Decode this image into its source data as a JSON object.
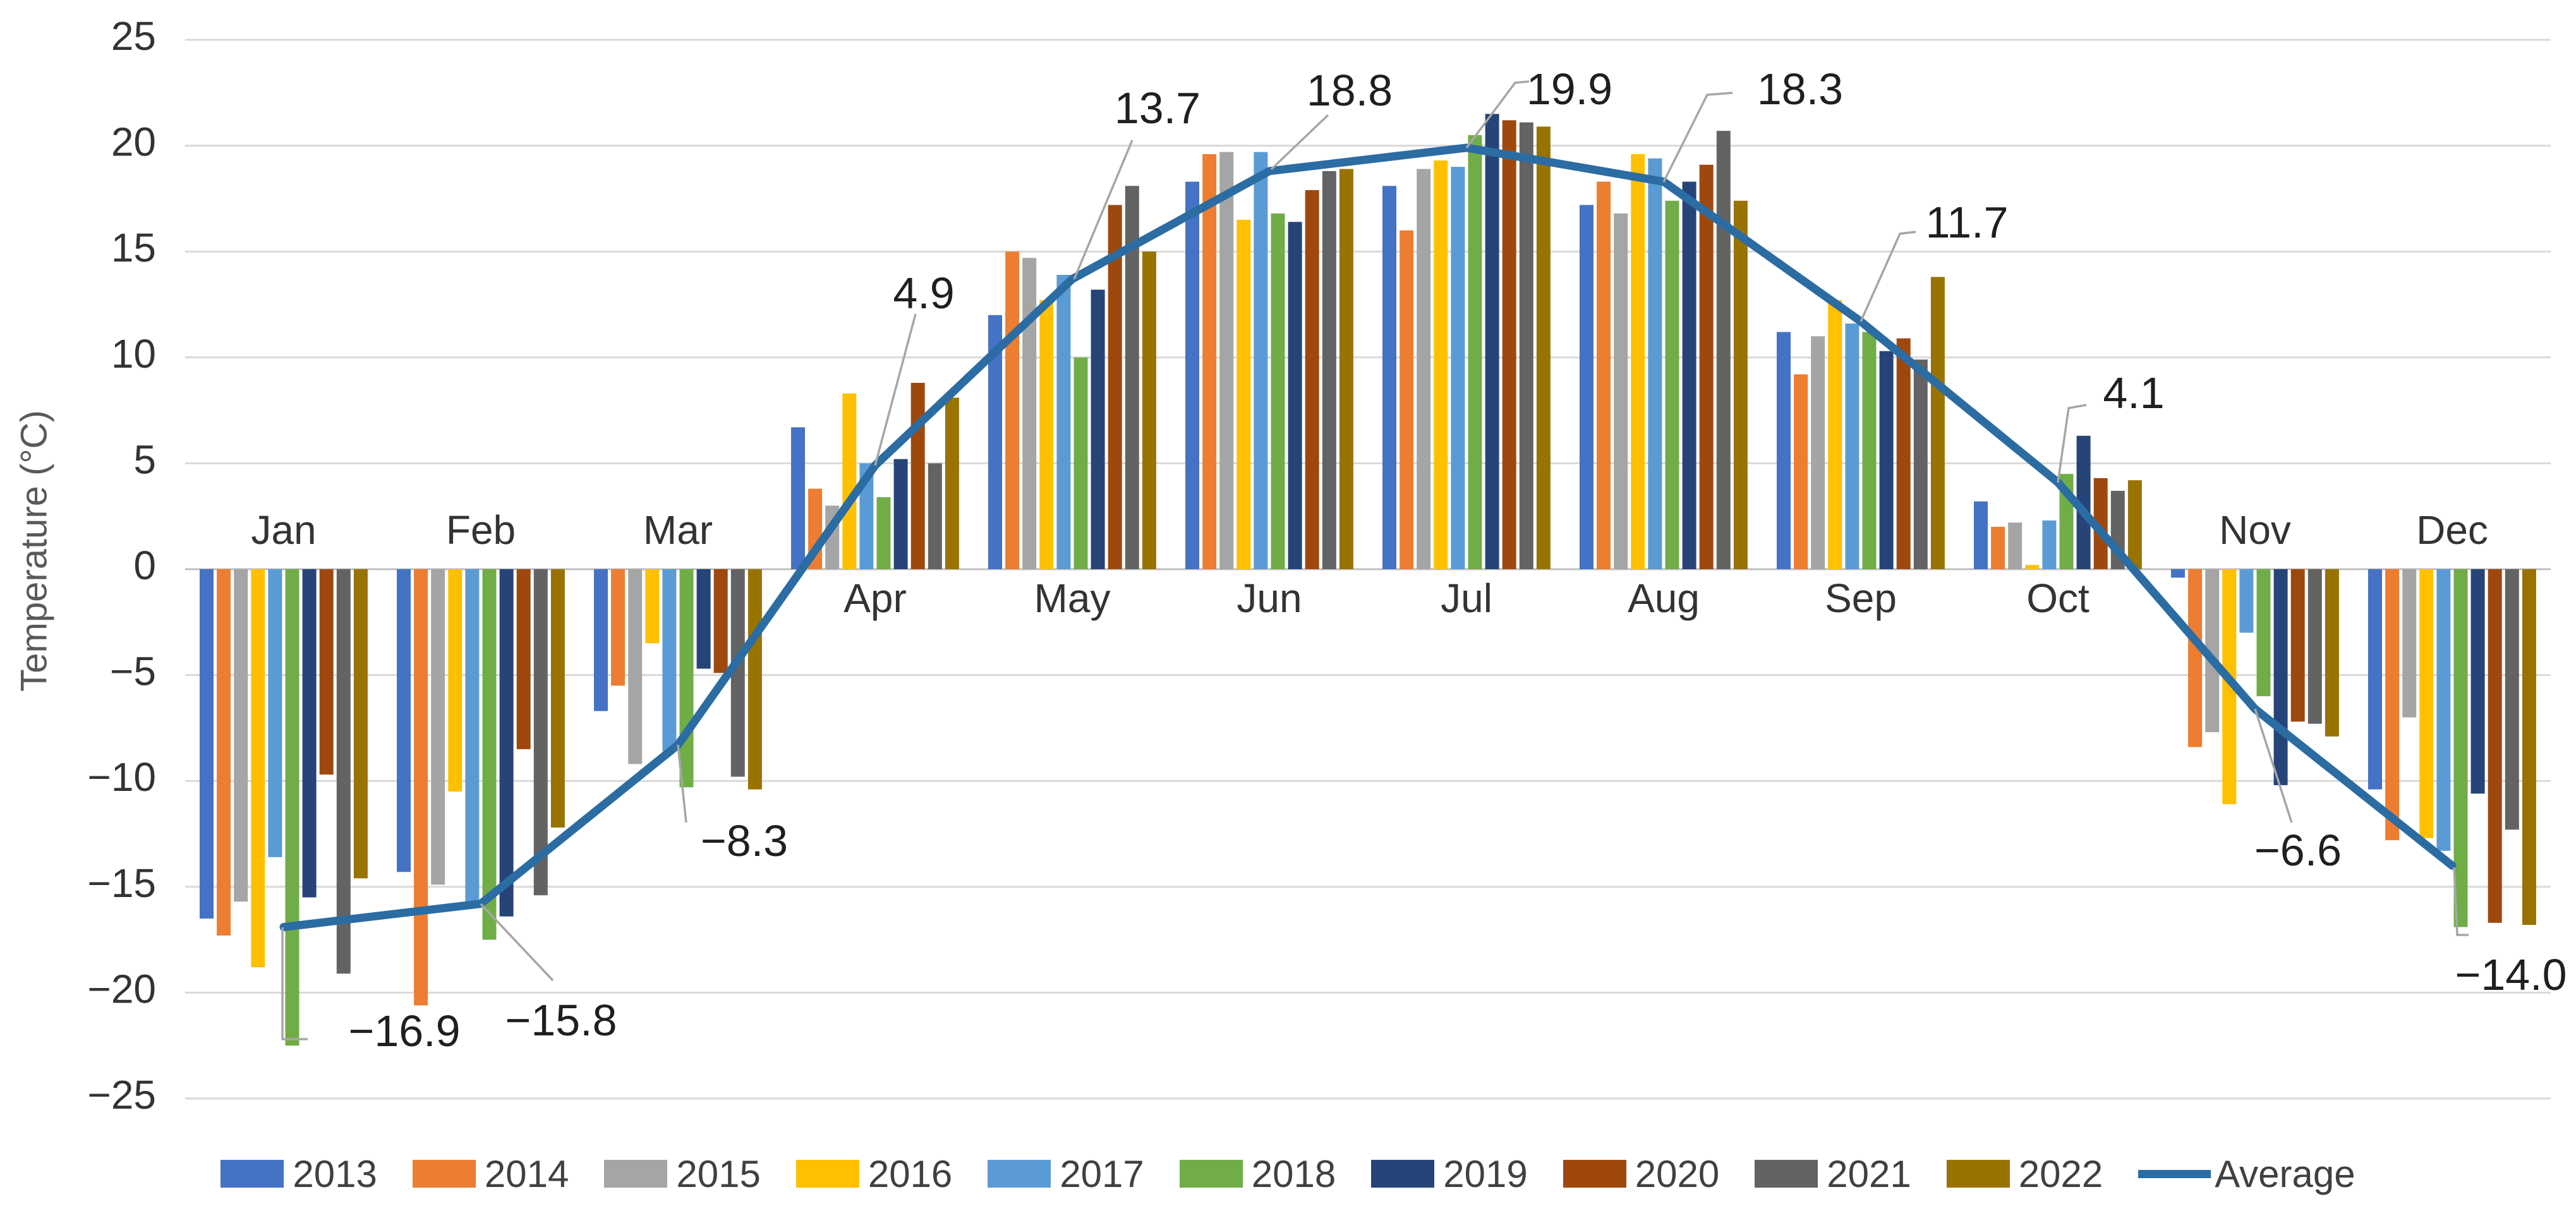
{
  "chart_data": {
    "type": "bar",
    "title": "",
    "ylabel": "Temperature (°C)",
    "ylim": [
      -25,
      25
    ],
    "ytick_interval": 5,
    "grid": true,
    "legend_position": "bottom",
    "ytick_labels": [
      "25",
      "20",
      "15",
      "10",
      "5",
      "0",
      "−5",
      "−10",
      "−15",
      "−20",
      "−25"
    ],
    "ytick_values": [
      25,
      20,
      15,
      10,
      5,
      0,
      -5,
      -10,
      -15,
      -20,
      -25
    ],
    "categories": [
      "Jan",
      "Feb",
      "Mar",
      "Apr",
      "May",
      "Jun",
      "Jul",
      "Aug",
      "Sep",
      "Oct",
      "Nov",
      "Dec"
    ],
    "series": [
      {
        "name": "2013",
        "color": "#4472C4",
        "values": [
          -16.5,
          -14.3,
          -6.7,
          6.7,
          12.0,
          18.3,
          18.1,
          17.2,
          11.2,
          3.2,
          -0.4,
          -10.4
        ]
      },
      {
        "name": "2014",
        "color": "#ED7D31",
        "values": [
          -17.3,
          -20.6,
          -5.5,
          3.8,
          15.0,
          19.6,
          16.0,
          18.3,
          9.2,
          2.0,
          -8.4,
          -12.8
        ]
      },
      {
        "name": "2015",
        "color": "#A5A5A5",
        "values": [
          -15.7,
          -14.9,
          -9.2,
          3.0,
          14.7,
          19.7,
          18.9,
          16.8,
          11.0,
          2.2,
          -7.7,
          -7.0
        ]
      },
      {
        "name": "2016",
        "color": "#FFC000",
        "values": [
          -18.8,
          -10.5,
          -3.5,
          8.3,
          12.7,
          16.5,
          19.3,
          19.6,
          12.7,
          0.2,
          -11.1,
          -12.7
        ]
      },
      {
        "name": "2017",
        "color": "#5B9BD5",
        "values": [
          -13.6,
          -15.9,
          -8.6,
          5.0,
          13.9,
          19.7,
          19.0,
          19.4,
          11.6,
          2.3,
          -3.0,
          -13.3
        ]
      },
      {
        "name": "2018",
        "color": "#70AD47",
        "values": [
          -22.5,
          -17.5,
          -10.3,
          3.4,
          10.0,
          16.8,
          20.5,
          17.4,
          11.2,
          4.5,
          -6.0,
          -16.9
        ]
      },
      {
        "name": "2019",
        "color": "#264478",
        "values": [
          -15.5,
          -16.4,
          -4.7,
          5.2,
          13.2,
          16.4,
          21.5,
          18.3,
          10.3,
          6.3,
          -10.2,
          -10.6
        ]
      },
      {
        "name": "2020",
        "color": "#9E480E",
        "values": [
          -9.7,
          -8.5,
          -4.9,
          8.8,
          17.2,
          17.9,
          21.2,
          19.1,
          10.9,
          4.3,
          -7.2,
          -16.7
        ]
      },
      {
        "name": "2021",
        "color": "#636363",
        "values": [
          -19.1,
          -15.4,
          -9.8,
          5.0,
          18.1,
          18.8,
          21.1,
          20.7,
          9.9,
          3.7,
          -7.3,
          -12.3
        ]
      },
      {
        "name": "2022",
        "color": "#997300",
        "values": [
          -14.6,
          -12.2,
          -10.4,
          8.1,
          15.0,
          18.9,
          20.9,
          17.4,
          13.8,
          4.2,
          -7.9,
          -16.8
        ]
      }
    ],
    "average_series": {
      "name": "Average",
      "color": "#2B6CA3",
      "values": [
        -16.9,
        -15.8,
        -8.3,
        4.9,
        13.7,
        18.8,
        19.9,
        18.3,
        11.7,
        4.1,
        -6.6,
        -14.0
      ]
    },
    "annotations": [
      {
        "category": "Jan",
        "label": "−16.9",
        "value": -16.9
      },
      {
        "category": "Feb",
        "label": "−15.8",
        "value": -15.8
      },
      {
        "category": "Mar",
        "label": "−8.3",
        "value": -8.3
      },
      {
        "category": "Apr",
        "label": "4.9",
        "value": 4.9
      },
      {
        "category": "May",
        "label": "13.7",
        "value": 13.7
      },
      {
        "category": "Jun",
        "label": "18.8",
        "value": 18.8
      },
      {
        "category": "Jul",
        "label": "19.9",
        "value": 19.9
      },
      {
        "category": "Aug",
        "label": "18.3",
        "value": 18.3
      },
      {
        "category": "Sep",
        "label": "11.7",
        "value": 11.7
      },
      {
        "category": "Oct",
        "label": "4.1",
        "value": 4.1
      },
      {
        "category": "Nov",
        "label": "−6.6",
        "value": -6.6
      },
      {
        "category": "Dec",
        "label": "−14.0",
        "value": -14.0
      }
    ]
  }
}
